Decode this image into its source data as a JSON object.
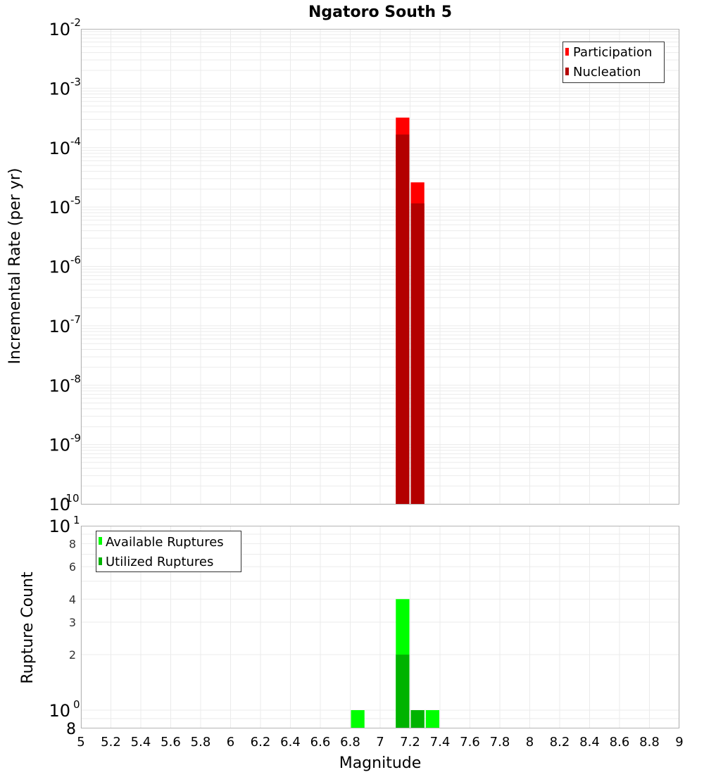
{
  "title": "Ngatoro South 5",
  "colors": {
    "participation": "#ff0000",
    "nucleation": "#b30000",
    "available": "#00ff00",
    "utilized": "#00b300",
    "grid": "#ebebeb",
    "frame": "#b4b4b4",
    "text": "#000000"
  },
  "chart_data": [
    {
      "type": "bar",
      "title": "Ngatoro South 5",
      "xlabel": "Magnitude",
      "ylabel": "Incremental Rate (per yr)",
      "yscale": "log",
      "ylim": [
        1e-10,
        0.01
      ],
      "xlim": [
        5,
        9
      ],
      "grid": true,
      "legend_position": "upper-right",
      "y_tick_labels": [
        "10^-2",
        "10^-3",
        "10^-4",
        "10^-5",
        "10^-6",
        "10^-7",
        "10^-8",
        "10^-9",
        "10^-10"
      ],
      "bin_width": 0.1,
      "x": [
        7.15,
        7.25
      ],
      "series": [
        {
          "name": "Participation",
          "values": [
            0.00032,
            2.6e-05
          ]
        },
        {
          "name": "Nucleation",
          "values": [
            0.000166,
            1.15e-05
          ]
        }
      ]
    },
    {
      "type": "bar",
      "xlabel": "Magnitude",
      "ylabel": "Rupture Count",
      "yscale": "log",
      "ylim": [
        0.8,
        10
      ],
      "xlim": [
        5,
        9
      ],
      "grid": true,
      "legend_position": "upper-left",
      "y_tick_labels": [
        "10^1",
        "8",
        "6",
        "4",
        "3",
        "2",
        "10^0",
        "8"
      ],
      "x_tick_labels": [
        "5",
        "5.2",
        "5.4",
        "5.6",
        "5.8",
        "6",
        "6.2",
        "6.4",
        "6.6",
        "6.8",
        "7",
        "7.2",
        "7.4",
        "7.6",
        "7.8",
        "8",
        "8.2",
        "8.4",
        "8.6",
        "8.8",
        "9"
      ],
      "bin_width": 0.1,
      "x": [
        6.85,
        7.15,
        7.25,
        7.35
      ],
      "series": [
        {
          "name": "Available Ruptures",
          "values": [
            1,
            4,
            1,
            1
          ]
        },
        {
          "name": "Utilized Ruptures",
          "values": [
            0,
            2,
            1,
            0
          ]
        }
      ]
    }
  ],
  "legend_top": [
    "Participation",
    "Nucleation"
  ],
  "legend_bottom": [
    "Available Ruptures",
    "Utilized Ruptures"
  ]
}
